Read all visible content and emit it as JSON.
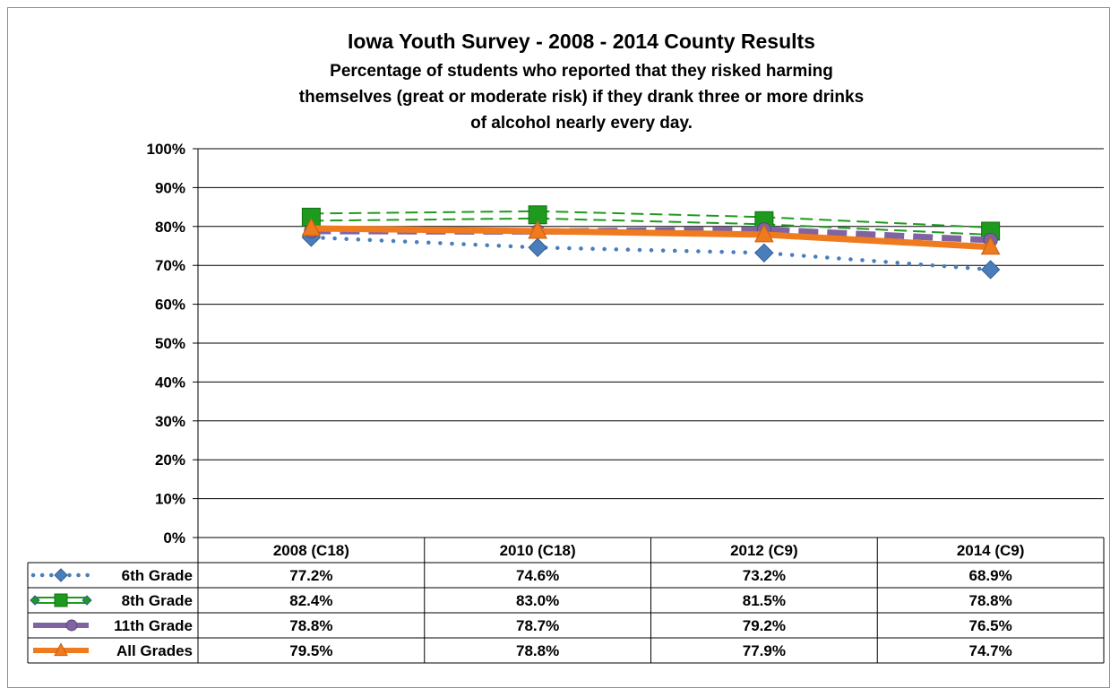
{
  "chart_data": {
    "type": "line",
    "title": "Iowa Youth Survey - 2008 - 2014 County Results",
    "subtitle_lines": [
      "Percentage of students who reported that they risked harming",
      "themselves (great or moderate risk) if they drank three or more drinks",
      "of alcohol nearly every day."
    ],
    "categories": [
      "2008 (C18)",
      "2010 (C18)",
      "2012 (C9)",
      "2014 (C9)"
    ],
    "ylim": [
      0,
      100
    ],
    "yticks": [
      "0%",
      "10%",
      "20%",
      "30%",
      "40%",
      "50%",
      "60%",
      "70%",
      "80%",
      "90%",
      "100%"
    ],
    "grid": true,
    "legend": "data-table",
    "series": [
      {
        "name": "6th Grade",
        "values": [
          77.2,
          74.6,
          73.2,
          68.9
        ],
        "labels": [
          "77.2%",
          "74.6%",
          "73.2%",
          "68.9%"
        ],
        "color": "#4a7ebb",
        "marker": "diamond",
        "line": "dotted"
      },
      {
        "name": "8th Grade",
        "values": [
          82.4,
          83.0,
          81.5,
          78.8
        ],
        "labels": [
          "82.4%",
          "83.0%",
          "81.5%",
          "78.8%"
        ],
        "color": "#1e9a1e",
        "marker": "square",
        "line": "double-dashed"
      },
      {
        "name": "11th Grade",
        "values": [
          78.8,
          78.7,
          79.2,
          76.5
        ],
        "labels": [
          "78.8%",
          "78.7%",
          "79.2%",
          "76.5%"
        ],
        "color": "#8064a2",
        "marker": "circle",
        "line": "dashed-thick"
      },
      {
        "name": "All Grades",
        "values": [
          79.5,
          78.8,
          77.9,
          74.7
        ],
        "labels": [
          "79.5%",
          "78.8%",
          "77.9%",
          "74.7%"
        ],
        "color": "#f07a1e",
        "marker": "triangle",
        "line": "solid-thick"
      }
    ]
  }
}
